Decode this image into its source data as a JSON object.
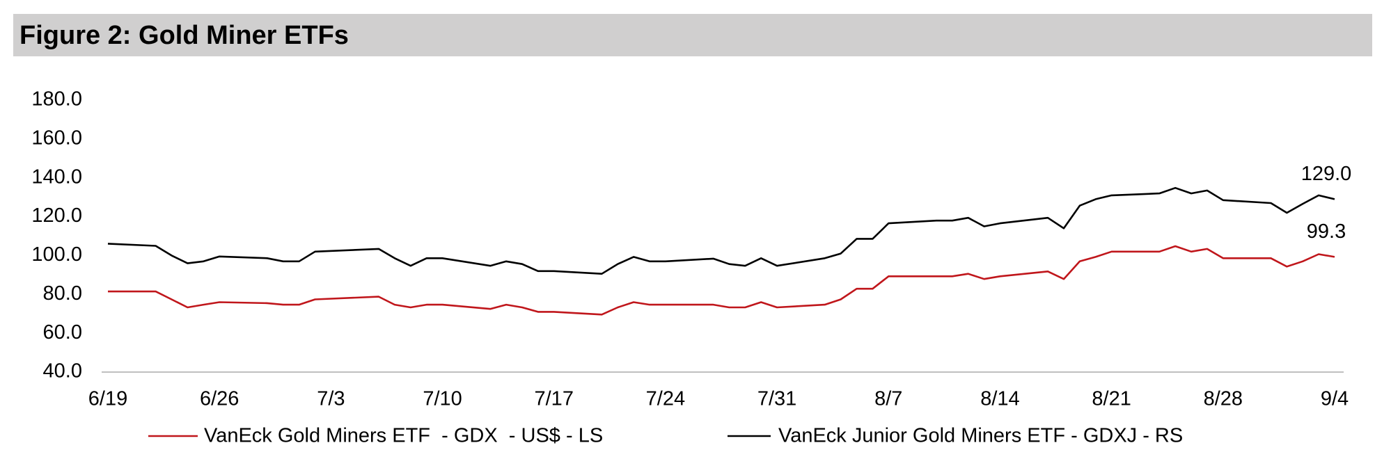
{
  "chart_data": {
    "type": "line",
    "title": "Figure 2: Gold Miner ETFs",
    "x": [
      "6/19",
      "6/22",
      "6/23",
      "6/24",
      "6/25",
      "6/26",
      "6/29",
      "6/30",
      "7/1",
      "7/2",
      "7/6",
      "7/7",
      "7/8",
      "7/9",
      "7/10",
      "7/13",
      "7/14",
      "7/15",
      "7/16",
      "7/17",
      "7/20",
      "7/21",
      "7/22",
      "7/23",
      "7/24",
      "7/27",
      "7/28",
      "7/29",
      "7/30",
      "7/31",
      "8/3",
      "8/4",
      "8/5",
      "8/6",
      "8/7",
      "8/10",
      "8/11",
      "8/12",
      "8/13",
      "8/14",
      "8/17",
      "8/18",
      "8/19",
      "8/20",
      "8/21",
      "8/24",
      "8/25",
      "8/26",
      "8/27",
      "8/28",
      "8/31",
      "9/1",
      "9/2",
      "9/3",
      "9/4"
    ],
    "xticks": [
      "6/19",
      "6/26",
      "7/3",
      "7/10",
      "7/17",
      "7/24",
      "7/31",
      "8/7",
      "8/14",
      "8/21",
      "8/28",
      "9/4"
    ],
    "ylim": [
      40,
      180
    ],
    "yticks": [
      {
        "value": 40,
        "label": "40.0"
      },
      {
        "value": 60,
        "label": "60.0"
      },
      {
        "value": 80,
        "label": "80.0"
      },
      {
        "value": 100,
        "label": "100.0"
      },
      {
        "value": 120,
        "label": "120.0"
      },
      {
        "value": 140,
        "label": "140.0"
      },
      {
        "value": 160,
        "label": "160.0"
      },
      {
        "value": 180,
        "label": "180.0"
      }
    ],
    "grid": false,
    "legend": "bottom",
    "series": [
      {
        "name": "VanEck Gold Miners ETF  - GDX  - US$ - LS",
        "color": "#c0161b",
        "end_label": "99.3",
        "values": [
          81.5,
          81.5,
          77.4,
          73.3,
          74.7,
          76,
          75.5,
          74.7,
          74.7,
          77.4,
          78.8,
          74.7,
          73.3,
          74.7,
          74.7,
          72.5,
          74.7,
          73.3,
          71,
          71,
          69.6,
          73.3,
          76,
          74.7,
          74.7,
          74.7,
          73.3,
          73.3,
          76,
          73.3,
          74.7,
          77.4,
          82.9,
          82.9,
          89.3,
          89.3,
          89.3,
          90.6,
          87.9,
          89.3,
          91.8,
          87.9,
          97,
          99.3,
          102,
          102,
          104.8,
          102,
          103.4,
          98.6,
          98.6,
          94.3,
          97,
          100.7,
          99.3
        ]
      },
      {
        "name": "VanEck Junior Gold Miners ETF - GDXJ - RS",
        "color": "#000000",
        "end_label": "129.0",
        "values": [
          106.1,
          105,
          100,
          96,
          97,
          99.5,
          98.6,
          97,
          97,
          102,
          103.4,
          98.6,
          94.7,
          98.6,
          98.6,
          94.7,
          97,
          95.6,
          92,
          92,
          90.6,
          95.6,
          99.3,
          97,
          97,
          98.4,
          95.6,
          94.7,
          98.6,
          94.7,
          98.6,
          101,
          108.6,
          108.6,
          116.6,
          118,
          118,
          119.4,
          115,
          116.6,
          119.4,
          114,
          125.7,
          129,
          131,
          132,
          134.8,
          132,
          133.5,
          128.5,
          127,
          122,
          126.6,
          131,
          129.0
        ]
      }
    ]
  }
}
